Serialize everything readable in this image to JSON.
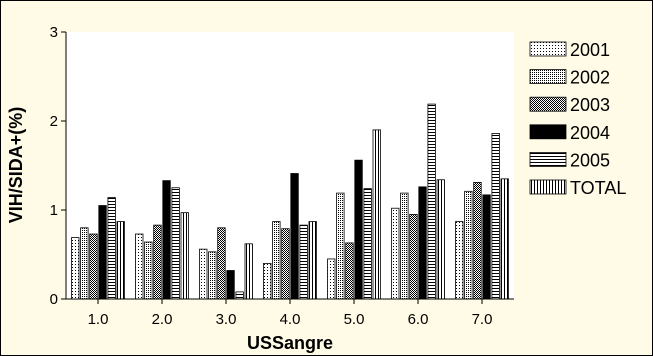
{
  "chart_data": {
    "type": "bar",
    "xlabel": "USSangre",
    "ylabel": "VIH/SIDA+(%)",
    "ylim": [
      0,
      3
    ],
    "yticks": [
      0,
      1,
      2,
      3
    ],
    "categories": [
      "1.0",
      "2.0",
      "3.0",
      "4.0",
      "5.0",
      "6.0",
      "7.0"
    ],
    "series": [
      {
        "name": "2001",
        "pattern": "dots-fine",
        "values": [
          0.69,
          0.73,
          0.56,
          0.4,
          0.45,
          1.02,
          0.87
        ]
      },
      {
        "name": "2002",
        "pattern": "dots-medium",
        "values": [
          0.8,
          0.64,
          0.53,
          0.87,
          1.19,
          1.19,
          1.21
        ]
      },
      {
        "name": "2003",
        "pattern": "dots-dense",
        "values": [
          0.73,
          0.83,
          0.8,
          0.79,
          0.63,
          0.95,
          1.31
        ]
      },
      {
        "name": "2004",
        "pattern": "solid-black",
        "values": [
          1.05,
          1.33,
          0.32,
          1.41,
          1.56,
          1.26,
          1.17
        ]
      },
      {
        "name": "2005",
        "pattern": "hlines",
        "values": [
          1.14,
          1.25,
          0.08,
          0.83,
          1.24,
          2.19,
          1.86
        ]
      },
      {
        "name": "TOTAL",
        "pattern": "vlines",
        "values": [
          0.87,
          0.97,
          0.62,
          0.87,
          1.9,
          1.34,
          1.35
        ]
      }
    ],
    "legend": "right",
    "grid": false,
    "colors": {
      "background": "#fffbe6",
      "plot_background": "#ffffff",
      "ink": "#000000"
    }
  }
}
